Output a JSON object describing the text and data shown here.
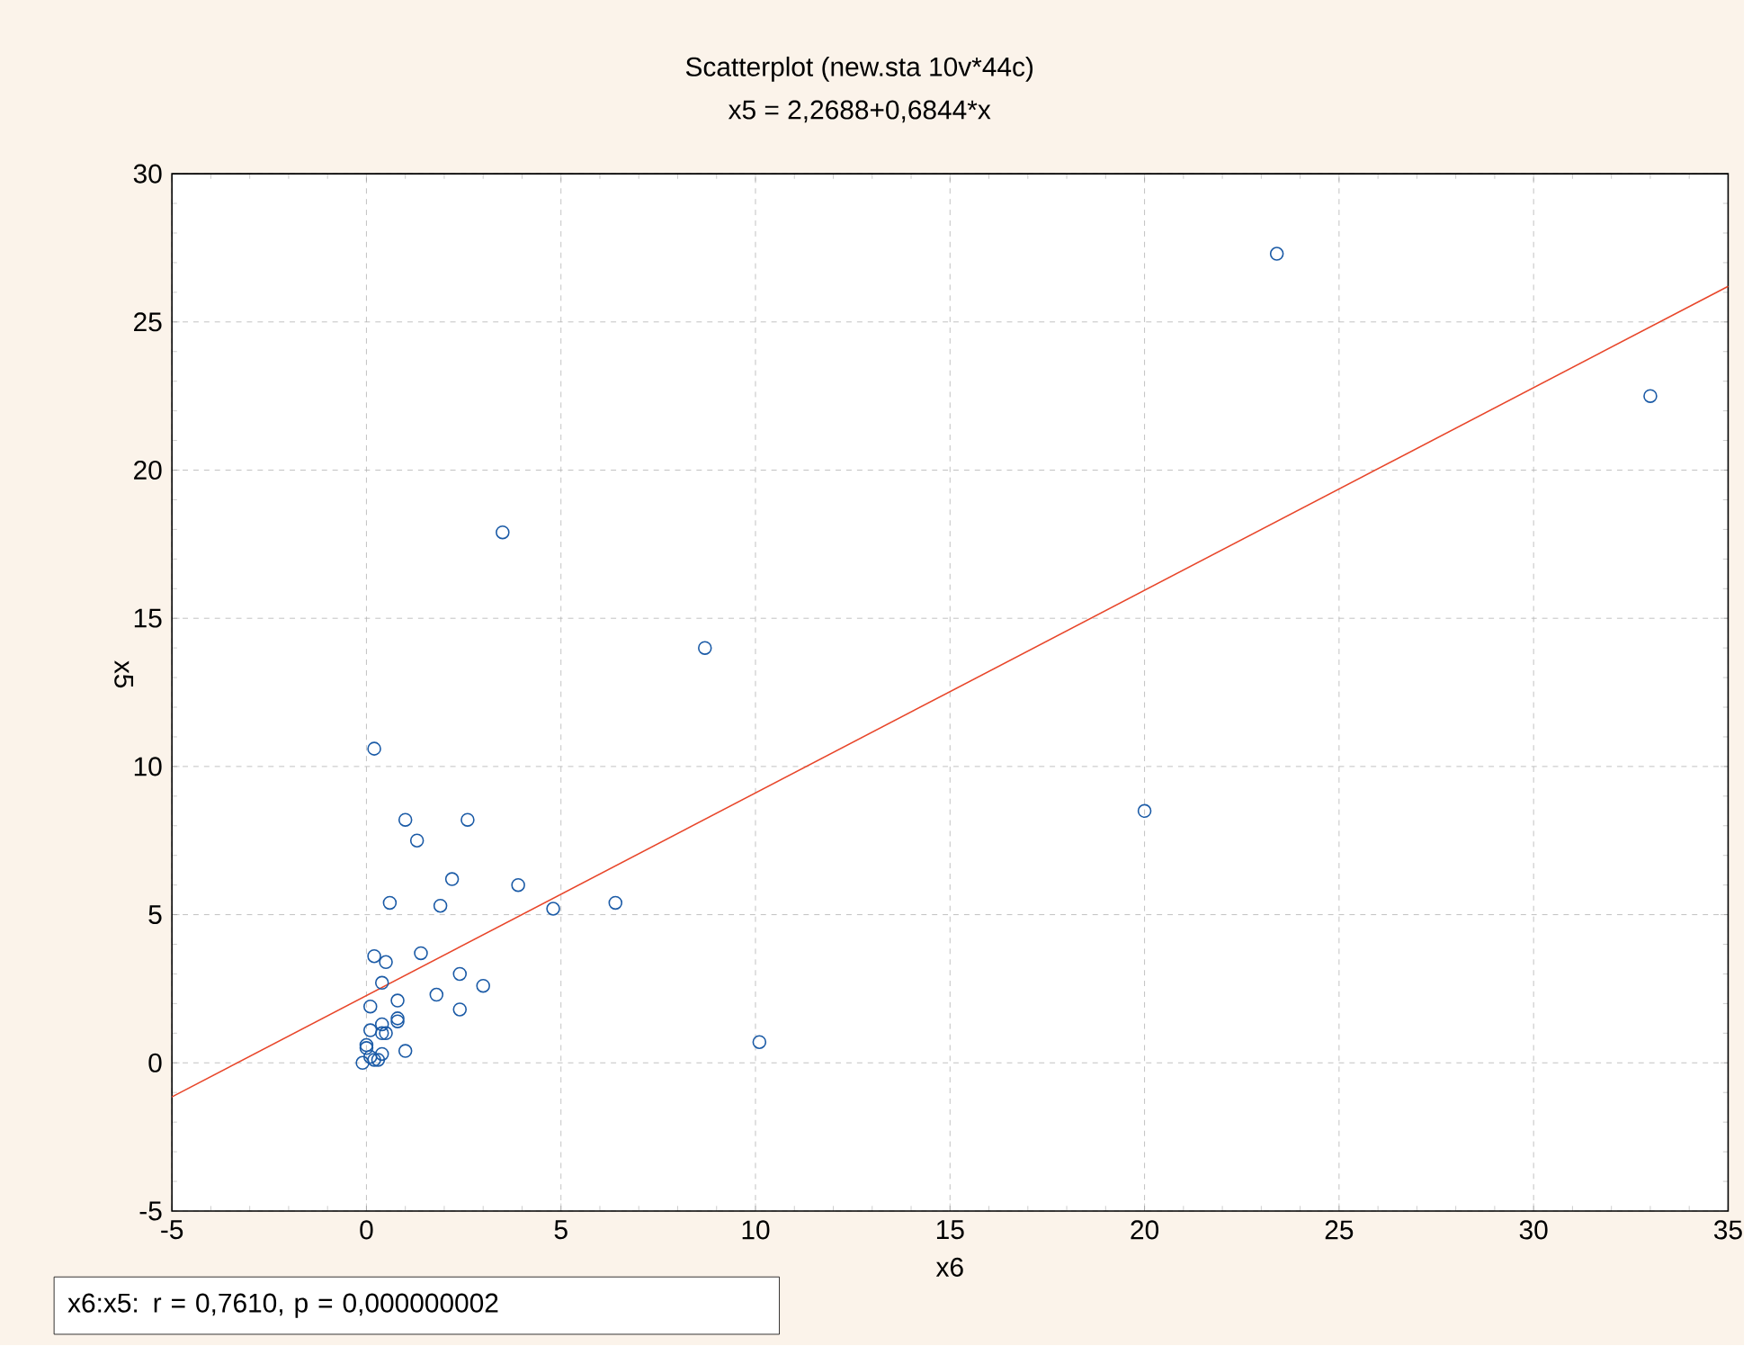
{
  "chart_data": {
    "type": "scatter",
    "title": "Scatterplot (new.sta 10v*44c)",
    "subtitle": "x5 = 2,2688+0,6844*x",
    "xlabel": "x6",
    "ylabel": "x5",
    "xlim": [
      -5,
      35
    ],
    "ylim": [
      -5,
      30
    ],
    "xticks": [
      -5,
      0,
      5,
      10,
      15,
      20,
      25,
      30,
      35
    ],
    "yticks": [
      -5,
      0,
      5,
      10,
      15,
      20,
      25,
      30
    ],
    "grid": true,
    "marker": "circle",
    "series": [
      {
        "color": "#1a5aa6",
        "x": [
          0.2,
          1.0,
          2.6,
          1.3,
          2.2,
          3.9,
          0.6,
          1.9,
          4.8,
          6.4,
          3.5,
          8.7,
          20.0,
          23.4,
          33.0,
          10.1,
          0.2,
          0.5,
          1.4,
          0.4,
          2.4,
          3.0,
          1.8,
          2.4,
          0.8,
          0.1,
          0.8,
          0.4,
          0.1,
          0.4,
          1.0,
          0.4,
          0.0,
          0.1,
          -0.1,
          0.2,
          0.8,
          0.5,
          0.0,
          0.3
        ],
        "values": [
          10.6,
          8.2,
          8.2,
          7.5,
          6.2,
          6.0,
          5.4,
          5.3,
          5.2,
          5.4,
          17.9,
          14.0,
          8.5,
          27.3,
          22.5,
          0.7,
          3.6,
          3.4,
          3.7,
          2.7,
          3.0,
          2.6,
          2.3,
          1.8,
          2.1,
          1.9,
          1.5,
          1.3,
          1.1,
          1.0,
          0.4,
          0.3,
          0.6,
          0.2,
          0.0,
          0.1,
          1.4,
          1.0,
          0.5,
          0.1
        ]
      },
      {
        "type": "line",
        "color": "#e8462a",
        "marker": "none",
        "x": [
          -5,
          35
        ],
        "values": [
          -1.15,
          26.2
        ]
      }
    ],
    "annotations": [
      "x6:x5:   r = 0,7610, p = 0,000000002"
    ]
  }
}
